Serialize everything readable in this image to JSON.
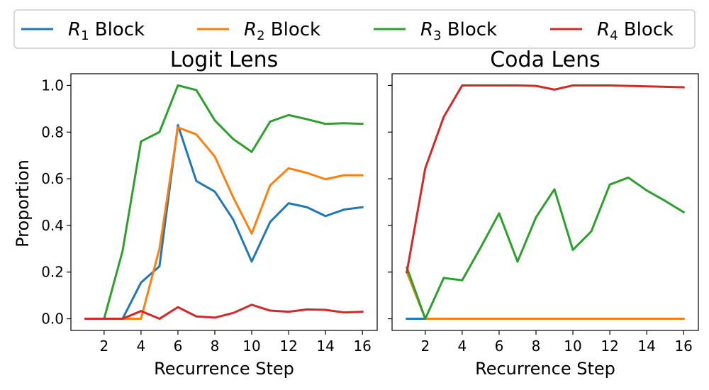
{
  "chart_data": {
    "type": "line",
    "shared_ylabel": "Proportion",
    "legend": {
      "placement": "top",
      "entries": [
        {
          "var": "R",
          "sub": "1",
          "text": "Block",
          "color": "#1f77b4"
        },
        {
          "var": "R",
          "sub": "2",
          "text": "Block",
          "color": "#ff7f0e"
        },
        {
          "var": "R",
          "sub": "3",
          "text": "Block",
          "color": "#2ca02c"
        },
        {
          "var": "R",
          "sub": "4",
          "text": "Block",
          "color": "#d62728"
        }
      ]
    },
    "x": [
      1,
      2,
      3,
      4,
      5,
      6,
      7,
      8,
      9,
      10,
      11,
      12,
      13,
      14,
      15,
      16
    ],
    "xticks": [
      2,
      4,
      6,
      8,
      10,
      12,
      14,
      16
    ],
    "xtick_labels": [
      "2",
      "4",
      "6",
      "8",
      "10",
      "12",
      "14",
      "16"
    ],
    "yticks": [
      0.0,
      0.2,
      0.4,
      0.6,
      0.8,
      1.0
    ],
    "ytick_labels": [
      "0.0",
      "0.2",
      "0.4",
      "0.6",
      "0.8",
      "1.0"
    ],
    "xlim": [
      0.2,
      16.8
    ],
    "ylim": [
      -0.05,
      1.05
    ],
    "panels": [
      {
        "title": "Logit Lens",
        "xlabel": "Recurrence Step",
        "series": [
          {
            "name": "R1 Block",
            "color": "#1f77b4",
            "values": [
              0.0,
              0.0,
              0.0,
              0.155,
              0.225,
              0.83,
              0.59,
              0.545,
              0.425,
              0.245,
              0.415,
              0.495,
              0.478,
              0.44,
              0.468,
              0.478
            ]
          },
          {
            "name": "R2 Block",
            "color": "#ff7f0e",
            "values": [
              0.0,
              0.0,
              0.0,
              0.0,
              0.3,
              0.82,
              0.79,
              0.695,
              0.52,
              0.365,
              0.572,
              0.645,
              0.625,
              0.598,
              0.615,
              0.615
            ]
          },
          {
            "name": "R3 Block",
            "color": "#2ca02c",
            "values": [
              0.0,
              0.0,
              0.29,
              0.76,
              0.8,
              1.0,
              0.98,
              0.85,
              0.77,
              0.715,
              0.845,
              0.873,
              0.855,
              0.835,
              0.838,
              0.835
            ]
          },
          {
            "name": "R4 Block",
            "color": "#d62728",
            "values": [
              0.0,
              0.0,
              0.0,
              0.033,
              0.0,
              0.05,
              0.01,
              0.005,
              0.025,
              0.06,
              0.035,
              0.03,
              0.04,
              0.038,
              0.027,
              0.03
            ]
          }
        ]
      },
      {
        "title": "Coda Lens",
        "xlabel": "Recurrence Step",
        "series": [
          {
            "name": "R1 Block",
            "color": "#1f77b4",
            "values": [
              0.0,
              0.0,
              0.0,
              0.0,
              0.0,
              0.0,
              0.0,
              0.0,
              0.0,
              0.0,
              0.0,
              0.0,
              0.0,
              0.0,
              0.0,
              0.0
            ]
          },
          {
            "name": "R2 Block",
            "color": "#ff7f0e",
            "values": [
              0.2,
              0.0,
              0.0,
              0.0,
              0.0,
              0.0,
              0.0,
              0.0,
              0.0,
              0.0,
              0.0,
              0.0,
              0.0,
              0.0,
              0.0,
              0.0
            ]
          },
          {
            "name": "R3 Block",
            "color": "#2ca02c",
            "values": [
              0.22,
              0.0,
              0.175,
              0.165,
              0.305,
              0.452,
              0.245,
              0.435,
              0.555,
              0.295,
              0.375,
              0.575,
              0.605,
              0.55,
              0.505,
              0.457
            ]
          },
          {
            "name": "R4 Block",
            "color": "#d62728",
            "values": [
              0.2,
              0.645,
              0.865,
              1.0,
              1.0,
              1.0,
              1.0,
              0.998,
              0.982,
              1.0,
              1.0,
              1.0,
              0.998,
              0.996,
              0.994,
              0.992
            ]
          }
        ]
      }
    ]
  }
}
